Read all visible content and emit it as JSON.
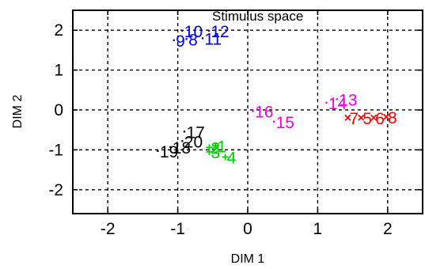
{
  "chart_data": {
    "type": "scatter",
    "title": "Stimulus space",
    "xlabel": "DIM 1",
    "ylabel": "DIM 2",
    "xlim": [
      -2.5,
      2.5
    ],
    "ylim": [
      -2.6,
      2.5
    ],
    "xticks": [
      -2,
      -1,
      0,
      1,
      2
    ],
    "xtick_labels": [
      "-2",
      "-1",
      "0",
      "1",
      "2"
    ],
    "yticks": [
      -2,
      -1,
      0,
      1,
      2
    ],
    "ytick_labels": [
      "-2",
      "-1",
      "0",
      "1",
      "2"
    ],
    "grid": true,
    "grid_style": "dashed",
    "series": [
      {
        "color": "#0000ee",
        "marker": "·",
        "points": [
          {
            "label": "10",
            "x": -0.93,
            "y": 1.98
          },
          {
            "label": "12",
            "x": -0.55,
            "y": 1.98
          },
          {
            "label": "9",
            "x": -1.05,
            "y": 1.75
          },
          {
            "label": "8",
            "x": -0.87,
            "y": 1.78
          },
          {
            "label": "11",
            "x": -0.64,
            "y": 1.8
          }
        ]
      },
      {
        "color": "#000000",
        "marker": "·",
        "points": [
          {
            "label": "17",
            "x": -0.9,
            "y": -0.55
          },
          {
            "label": "20",
            "x": -0.93,
            "y": -0.78
          },
          {
            "label": "18",
            "x": -1.1,
            "y": -0.93
          },
          {
            "label": "19",
            "x": -1.28,
            "y": -1.03
          }
        ]
      },
      {
        "color": "#00cc00",
        "marker": "+",
        "points": [
          {
            "label": "1",
            "x": -0.46,
            "y": -0.9
          },
          {
            "label": "2",
            "x": -0.55,
            "y": -0.94
          },
          {
            "label": "3",
            "x": -0.55,
            "y": -1.05
          },
          {
            "label": "4",
            "x": -0.32,
            "y": -1.18
          }
        ]
      },
      {
        "color": "#ee00ee",
        "marker": "·",
        "points": [
          {
            "label": "16",
            "x": 0.08,
            "y": -0.03
          },
          {
            "label": "15",
            "x": 0.38,
            "y": -0.3
          },
          {
            "label": "14",
            "x": 1.13,
            "y": 0.18
          },
          {
            "label": "13",
            "x": 1.28,
            "y": 0.27
          }
        ]
      },
      {
        "color": "#ff0000",
        "marker": "×",
        "points": [
          {
            "label": "7",
            "x": 1.43,
            "y": -0.2
          },
          {
            "label": "5",
            "x": 1.62,
            "y": -0.2
          },
          {
            "label": "6",
            "x": 1.8,
            "y": -0.2
          },
          {
            "label": "8",
            "x": 1.98,
            "y": -0.18
          }
        ]
      }
    ]
  }
}
